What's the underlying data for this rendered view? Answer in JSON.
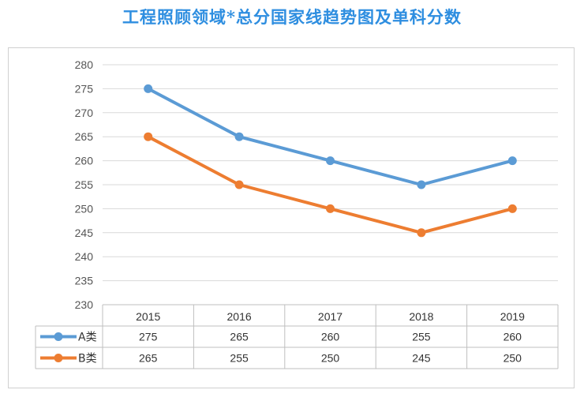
{
  "title": "工程照顾领域*总分国家线趋势图及单科分数",
  "chart_data": {
    "type": "line",
    "categories": [
      "2015",
      "2016",
      "2017",
      "2018",
      "2019"
    ],
    "ylim": [
      230,
      280
    ],
    "yticks": [
      280,
      275,
      270,
      265,
      260,
      255,
      250,
      245,
      240,
      235,
      230
    ],
    "grid": true,
    "legend": "data-table",
    "series": [
      {
        "name": "A类",
        "color": "#5b9bd5",
        "values": [
          275,
          265,
          260,
          255,
          260
        ]
      },
      {
        "name": "B类",
        "color": "#ed7d31",
        "values": [
          265,
          255,
          250,
          245,
          250
        ]
      }
    ]
  }
}
